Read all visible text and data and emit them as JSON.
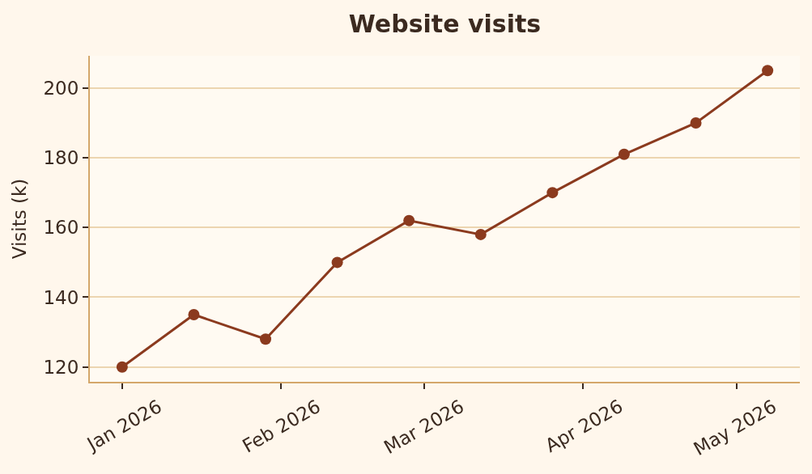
{
  "chart_data": {
    "type": "line",
    "title": "Website visits",
    "ylabel": "Visits (k)",
    "x": [
      "2026-01-01",
      "2026-01-15",
      "2026-01-29",
      "2026-02-12",
      "2026-02-26",
      "2026-03-12",
      "2026-03-26",
      "2026-04-09",
      "2026-04-23",
      "2026-05-07"
    ],
    "series": [
      {
        "color": "#8b3a1e",
        "values": [
          120,
          135,
          128,
          150,
          162,
          158,
          170,
          181,
          190,
          205
        ]
      }
    ],
    "xlim": [
      "2025-12-25T16:48",
      "2026-05-13T07:12"
    ],
    "ylim": [
      115.75,
      209.25
    ],
    "xticks": [
      {
        "value": "2026-01-01",
        "label": "Jan 2026"
      },
      {
        "value": "2026-02-01",
        "label": "Feb 2026"
      },
      {
        "value": "2026-03-01",
        "label": "Mar 2026"
      },
      {
        "value": "2026-04-01",
        "label": "Apr 2026"
      },
      {
        "value": "2026-05-01",
        "label": "May 2026"
      }
    ],
    "yticks": [
      120,
      140,
      160,
      180,
      200
    ],
    "grid": "y",
    "marker": "circle",
    "line_style": "solid"
  }
}
